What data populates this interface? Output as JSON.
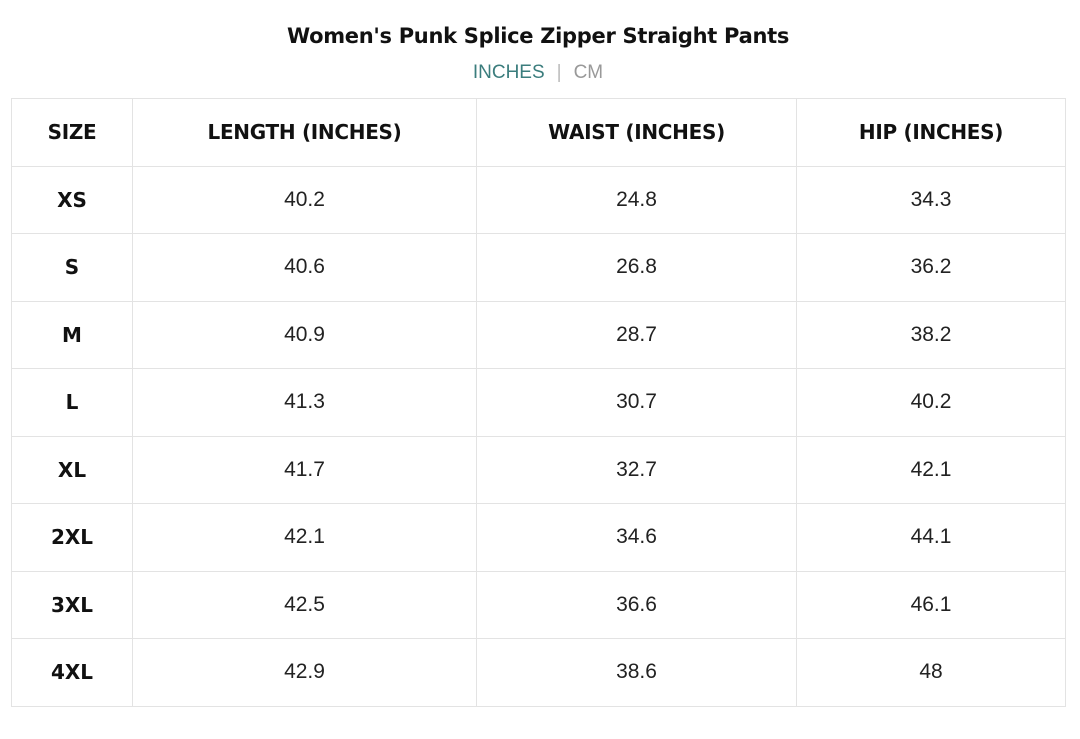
{
  "title": "Women's Punk Splice Zipper Straight Pants",
  "units": {
    "active": "INCHES",
    "separator": "|",
    "inactive": "CM",
    "active_color": "#3b7d7d"
  },
  "table": {
    "headers": [
      "SIZE",
      "LENGTH (INCHES)",
      "WAIST (INCHES)",
      "HIP (INCHES)"
    ],
    "rows": [
      [
        "XS",
        "40.2",
        "24.8",
        "34.3"
      ],
      [
        "S",
        "40.6",
        "26.8",
        "36.2"
      ],
      [
        "M",
        "40.9",
        "28.7",
        "38.2"
      ],
      [
        "L",
        "41.3",
        "30.7",
        "40.2"
      ],
      [
        "XL",
        "41.7",
        "32.7",
        "42.1"
      ],
      [
        "2XL",
        "42.1",
        "34.6",
        "44.1"
      ],
      [
        "3XL",
        "42.5",
        "36.6",
        "46.1"
      ],
      [
        "4XL",
        "42.9",
        "38.6",
        "48"
      ]
    ]
  }
}
